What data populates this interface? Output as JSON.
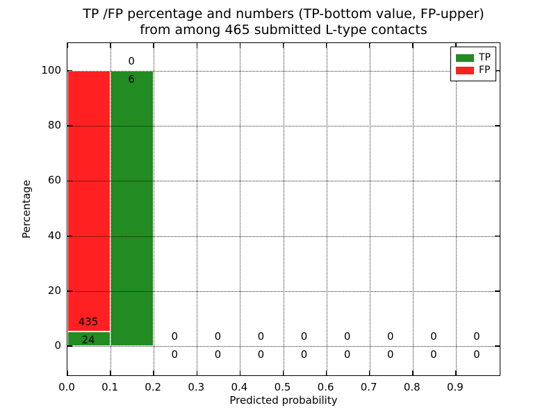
{
  "figure": {
    "title_line1": "TP /FP percentage and numbers (TP-bottom value, FP-upper)",
    "title_line2": "from among 465 submitted L-type contacts",
    "xlabel": "Predicted probability",
    "ylabel": "Percentage"
  },
  "chart_data": {
    "type": "bar",
    "stacked": true,
    "title": "TP /FP percentage and numbers (TP-bottom value, FP-upper) from among 465 submitted L-type contacts",
    "xlabel": "Predicted probability",
    "ylabel": "Percentage",
    "total_contacts": 465,
    "label_convention": "TP-bottom value, FP-upper",
    "categories": [
      "0.0-0.1",
      "0.1-0.2",
      "0.2-0.3",
      "0.3-0.4",
      "0.4-0.5",
      "0.5-0.6",
      "0.6-0.7",
      "0.7-0.8",
      "0.8-0.9",
      "0.9-1.0"
    ],
    "xticks": [
      "0.0",
      "0.1",
      "0.2",
      "0.3",
      "0.4",
      "0.5",
      "0.6",
      "0.7",
      "0.8",
      "0.9"
    ],
    "yticks": [
      0,
      20,
      40,
      60,
      80,
      100
    ],
    "xlim": [
      0.0,
      1.0
    ],
    "ylim": [
      -10.3,
      110.0
    ],
    "grid": true,
    "grid_style": "dotted",
    "legend_position": "upper right",
    "series": [
      {
        "name": "TP",
        "color": "#228B22",
        "counts": [
          24,
          6,
          0,
          0,
          0,
          0,
          0,
          0,
          0,
          0
        ],
        "pct": [
          5.23,
          100,
          0,
          0,
          0,
          0,
          0,
          0,
          0,
          0
        ]
      },
      {
        "name": "FP",
        "color": "#FF2121",
        "counts": [
          435,
          0,
          0,
          0,
          0,
          0,
          0,
          0,
          0,
          0
        ],
        "pct": [
          94.77,
          0,
          0,
          0,
          0,
          0,
          0,
          0,
          0,
          0
        ]
      }
    ]
  }
}
